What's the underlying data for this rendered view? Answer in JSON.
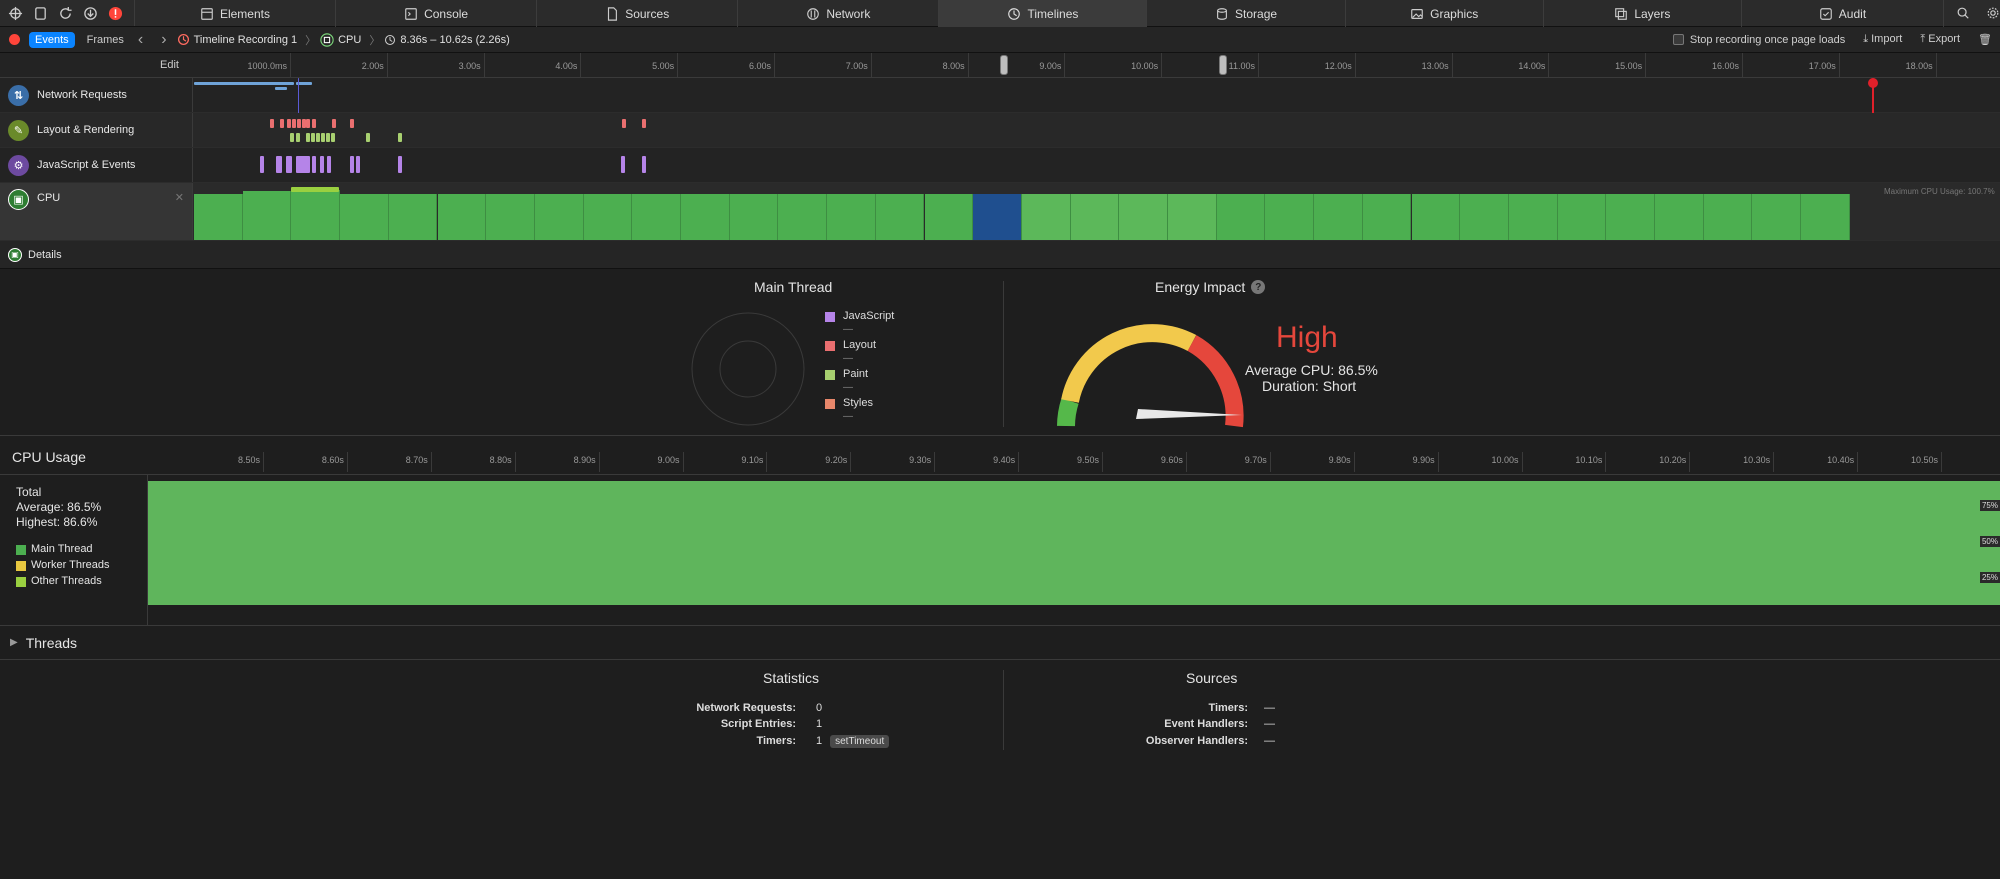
{
  "tabs": [
    {
      "label": "Elements"
    },
    {
      "label": "Console"
    },
    {
      "label": "Sources"
    },
    {
      "label": "Network"
    },
    {
      "label": "Timelines"
    },
    {
      "label": "Storage"
    },
    {
      "label": "Graphics"
    },
    {
      "label": "Layers"
    },
    {
      "label": "Audit"
    }
  ],
  "recbar": {
    "events_label": "Events",
    "frames_label": "Frames",
    "recording_name": "Timeline Recording 1",
    "cpu_label": "CPU",
    "range": "8.36s – 10.62s (2.26s)",
    "stop_label": "Stop recording once page loads",
    "import_label": "Import",
    "export_label": "Export"
  },
  "ruler": {
    "edit_label": "Edit",
    "ticks": [
      "1000.0ms",
      "2.00s",
      "3.00s",
      "4.00s",
      "5.00s",
      "6.00s",
      "7.00s",
      "8.00s",
      "9.00s",
      "10.00s",
      "11.00s",
      "12.00s",
      "13.00s",
      "14.00s",
      "15.00s",
      "16.00s",
      "17.00s",
      "18.00s"
    ]
  },
  "rows": {
    "network": "Network Requests",
    "layout": "Layout & Rendering",
    "js": "JavaScript & Events",
    "cpu": "CPU",
    "max_cpu": "Maximum CPU Usage: 100.7%"
  },
  "details": {
    "header": "Details",
    "main_thread_title": "Main Thread",
    "legend": [
      {
        "label": "JavaScript",
        "value": "—",
        "color": "#b584e8"
      },
      {
        "label": "Layout",
        "value": "—",
        "color": "#ea6f70"
      },
      {
        "label": "Paint",
        "value": "—",
        "color": "#a8d070"
      },
      {
        "label": "Styles",
        "value": "—",
        "color": "#e8876a"
      }
    ],
    "energy_title": "Energy Impact",
    "help_mark": "?",
    "energy_level": "High",
    "avg_cpu": "Average CPU: 86.5%",
    "duration": "Duration: Short"
  },
  "cpu_usage": {
    "title": "CPU Usage",
    "ticks": [
      "8.50s",
      "8.60s",
      "8.70s",
      "8.80s",
      "8.90s",
      "9.00s",
      "9.10s",
      "9.20s",
      "9.30s",
      "9.40s",
      "9.50s",
      "9.60s",
      "9.70s",
      "9.80s",
      "9.90s",
      "10.00s",
      "10.10s",
      "10.20s",
      "10.30s",
      "10.40s",
      "10.50s"
    ],
    "total_label": "Total",
    "average": "Average: 86.5%",
    "highest": "Highest: 86.6%",
    "threads": [
      {
        "label": "Main Thread",
        "color": "#4caf50"
      },
      {
        "label": "Worker Threads",
        "color": "#e8c840"
      },
      {
        "label": "Other Threads",
        "color": "#9ad040"
      }
    ],
    "pct_75": "75%",
    "pct_50": "50%",
    "pct_25": "25%"
  },
  "threads_label": "Threads",
  "statistics": {
    "title": "Statistics",
    "rows": [
      {
        "key": "Network Requests:",
        "value": "0"
      },
      {
        "key": "Script Entries:",
        "value": "1"
      },
      {
        "key": "Timers:",
        "value": "1"
      }
    ],
    "timer_badge": "setTimeout"
  },
  "sources": {
    "title": "Sources",
    "rows": [
      {
        "key": "Timers:",
        "value": "—"
      },
      {
        "key": "Event Handlers:",
        "value": "—"
      },
      {
        "key": "Observer Handlers:",
        "value": "—"
      }
    ]
  }
}
